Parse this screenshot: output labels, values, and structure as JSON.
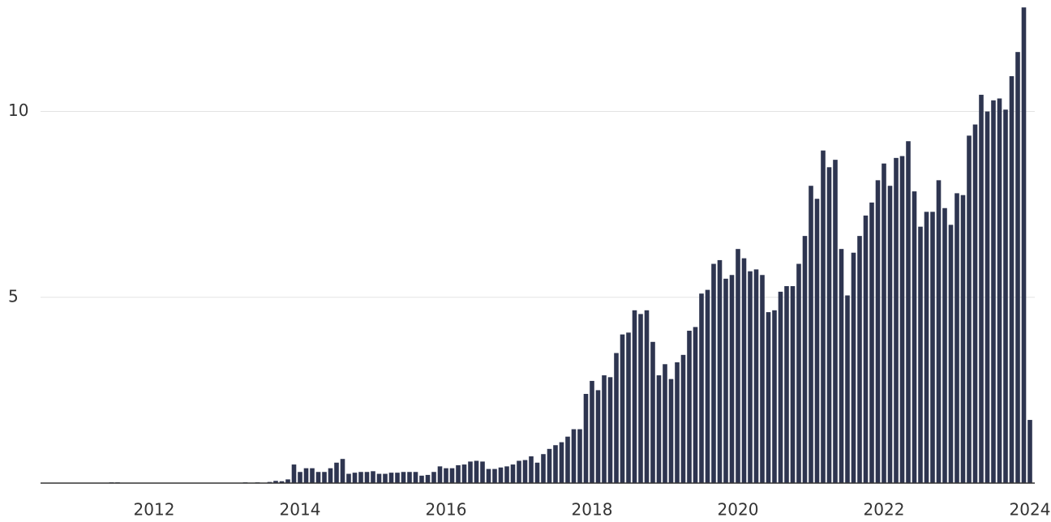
{
  "chart_data": {
    "type": "bar",
    "categories": [
      null,
      null,
      null,
      null,
      null,
      null,
      null,
      null,
      null,
      null,
      null,
      null,
      null,
      null,
      null,
      null,
      null,
      null,
      "2012",
      null,
      null,
      null,
      null,
      null,
      null,
      null,
      null,
      null,
      null,
      null,
      null,
      null,
      null,
      null,
      null,
      null,
      null,
      null,
      null,
      null,
      null,
      null,
      "2014",
      null,
      null,
      null,
      null,
      null,
      null,
      null,
      null,
      null,
      null,
      null,
      null,
      null,
      null,
      null,
      null,
      null,
      null,
      null,
      null,
      null,
      null,
      null,
      "2016",
      null,
      null,
      null,
      null,
      null,
      null,
      null,
      null,
      null,
      null,
      null,
      null,
      null,
      null,
      null,
      null,
      null,
      null,
      null,
      null,
      null,
      null,
      null,
      "2018",
      null,
      null,
      null,
      null,
      null,
      null,
      null,
      null,
      null,
      null,
      null,
      null,
      null,
      null,
      null,
      null,
      null,
      null,
      null,
      null,
      null,
      null,
      null,
      "2020",
      null,
      null,
      null,
      null,
      null,
      null,
      null,
      null,
      null,
      null,
      null,
      null,
      null,
      null,
      null,
      null,
      null,
      null,
      null,
      null,
      null,
      null,
      null,
      "2022",
      null,
      null,
      null,
      null,
      null,
      null,
      null,
      null,
      null,
      null,
      null,
      null,
      null,
      null,
      null,
      null,
      null,
      null,
      null,
      null,
      null,
      null,
      null,
      "2024"
    ],
    "values": [
      0,
      0,
      0,
      0,
      0,
      0,
      0,
      0,
      0,
      0,
      0,
      0.02,
      0.02,
      0,
      0,
      0,
      0,
      0,
      0,
      0,
      0,
      0,
      0,
      0,
      0,
      0,
      0,
      0,
      0,
      0,
      0,
      0,
      0,
      0.02,
      0,
      0.02,
      0,
      0.03,
      0.06,
      0.05,
      0.1,
      0.5,
      0.3,
      0.4,
      0.4,
      0.3,
      0.3,
      0.4,
      0.55,
      0.65,
      0.25,
      0.28,
      0.3,
      0.3,
      0.32,
      0.25,
      0.25,
      0.28,
      0.28,
      0.3,
      0.3,
      0.3,
      0.2,
      0.22,
      0.3,
      0.45,
      0.4,
      0.4,
      0.48,
      0.5,
      0.58,
      0.6,
      0.58,
      0.38,
      0.38,
      0.42,
      0.45,
      0.5,
      0.6,
      0.62,
      0.72,
      0.55,
      0.78,
      0.92,
      1.02,
      1.1,
      1.25,
      1.45,
      1.45,
      2.4,
      2.75,
      2.5,
      2.9,
      2.85,
      3.5,
      4.0,
      4.05,
      4.65,
      4.55,
      4.65,
      3.8,
      2.9,
      3.2,
      2.8,
      3.25,
      3.45,
      4.1,
      4.2,
      5.1,
      5.2,
      5.9,
      6.0,
      5.5,
      5.6,
      6.3,
      6.05,
      5.7,
      5.75,
      5.6,
      4.6,
      4.65,
      5.15,
      5.3,
      5.3,
      5.9,
      6.65,
      8.0,
      7.65,
      8.95,
      8.5,
      8.7,
      6.3,
      5.05,
      6.2,
      6.65,
      7.2,
      7.55,
      8.15,
      8.6,
      8.0,
      8.75,
      8.8,
      9.2,
      7.85,
      6.9,
      7.3,
      7.3,
      8.15,
      7.4,
      6.95,
      7.8,
      7.75,
      9.35,
      9.65,
      10.45,
      10.0,
      10.3,
      10.35,
      10.05,
      10.95,
      11.6,
      12.8,
      1.7
    ],
    "color": "#2e3550",
    "ylim": [
      0,
      13
    ],
    "yticks": [
      5,
      10
    ],
    "grid": true
  }
}
